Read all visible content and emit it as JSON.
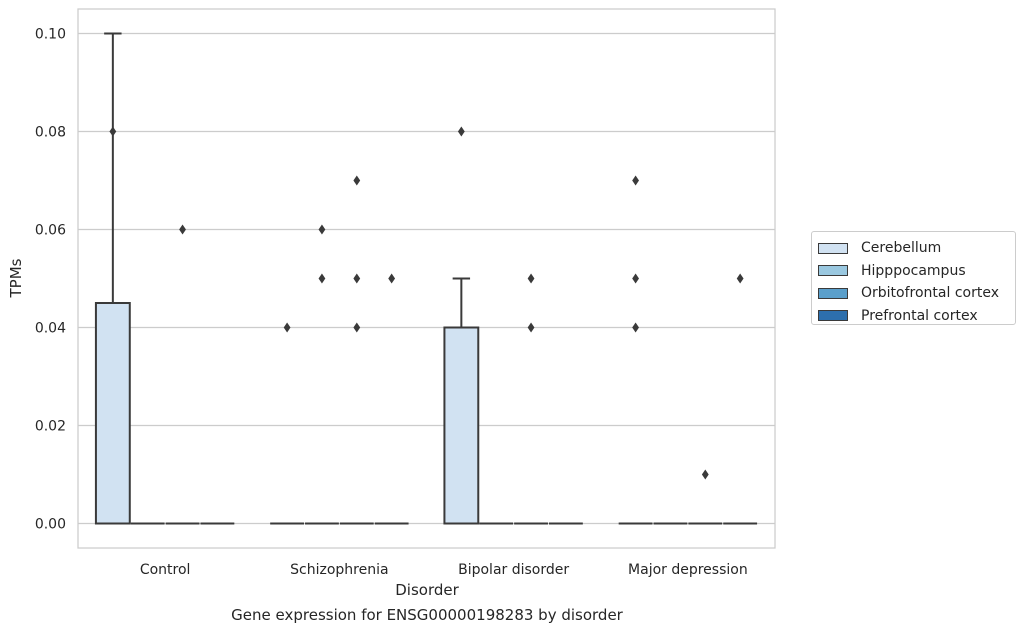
{
  "caption": "Gene expression for ENSG00000198283 by disorder",
  "colors": {
    "Cerebellum": "#d1e2f2",
    "Hipppocampus": "#9ac8e0",
    "Orbitofrontal cortex": "#5a9fcb",
    "Prefrontal cortex": "#2d6fad",
    "grid": "#cccccc",
    "box_edge": "#3a3a3a"
  },
  "chart_data": {
    "type": "box",
    "title": "",
    "xlabel": "Disorder",
    "ylabel": "TPMs",
    "ylim": [
      -0.005,
      0.105
    ],
    "yticks": [
      0.0,
      0.02,
      0.04,
      0.06,
      0.08,
      0.1
    ],
    "ytick_labels": [
      "0.00",
      "0.02",
      "0.04",
      "0.06",
      "0.08",
      "0.10"
    ],
    "grid": true,
    "legend_position": "right",
    "categories": [
      "Control",
      "Schizophrenia",
      "Bipolar disorder",
      "Major depression"
    ],
    "series": [
      {
        "name": "Cerebellum",
        "boxes": [
          {
            "q1": 0.0,
            "median": 0.0,
            "q3": 0.045,
            "whisker_low": 0.0,
            "whisker_high": 0.1,
            "outliers": [
              0.08
            ]
          },
          {
            "q1": 0.0,
            "median": 0.0,
            "q3": 0.0,
            "whisker_low": 0.0,
            "whisker_high": 0.0,
            "outliers": [
              0.04
            ]
          },
          {
            "q1": 0.0,
            "median": 0.0,
            "q3": 0.04,
            "whisker_low": 0.0,
            "whisker_high": 0.05,
            "outliers": [
              0.08
            ]
          },
          {
            "q1": 0.0,
            "median": 0.0,
            "q3": 0.0,
            "whisker_low": 0.0,
            "whisker_high": 0.0,
            "outliers": [
              0.07,
              0.05,
              0.04
            ]
          }
        ]
      },
      {
        "name": "Hipppocampus",
        "boxes": [
          {
            "q1": 0.0,
            "median": 0.0,
            "q3": 0.0,
            "whisker_low": 0.0,
            "whisker_high": 0.0,
            "outliers": []
          },
          {
            "q1": 0.0,
            "median": 0.0,
            "q3": 0.0,
            "whisker_low": 0.0,
            "whisker_high": 0.0,
            "outliers": [
              0.06,
              0.05
            ]
          },
          {
            "q1": 0.0,
            "median": 0.0,
            "q3": 0.0,
            "whisker_low": 0.0,
            "whisker_high": 0.0,
            "outliers": []
          },
          {
            "q1": 0.0,
            "median": 0.0,
            "q3": 0.0,
            "whisker_low": 0.0,
            "whisker_high": 0.0,
            "outliers": []
          }
        ]
      },
      {
        "name": "Orbitofrontal cortex",
        "boxes": [
          {
            "q1": 0.0,
            "median": 0.0,
            "q3": 0.0,
            "whisker_low": 0.0,
            "whisker_high": 0.0,
            "outliers": [
              0.06
            ]
          },
          {
            "q1": 0.0,
            "median": 0.0,
            "q3": 0.0,
            "whisker_low": 0.0,
            "whisker_high": 0.0,
            "outliers": [
              0.07,
              0.05,
              0.04
            ]
          },
          {
            "q1": 0.0,
            "median": 0.0,
            "q3": 0.0,
            "whisker_low": 0.0,
            "whisker_high": 0.0,
            "outliers": [
              0.05,
              0.04
            ]
          },
          {
            "q1": 0.0,
            "median": 0.0,
            "q3": 0.0,
            "whisker_low": 0.0,
            "whisker_high": 0.0,
            "outliers": [
              0.01
            ]
          }
        ]
      },
      {
        "name": "Prefrontal cortex",
        "boxes": [
          {
            "q1": 0.0,
            "median": 0.0,
            "q3": 0.0,
            "whisker_low": 0.0,
            "whisker_high": 0.0,
            "outliers": []
          },
          {
            "q1": 0.0,
            "median": 0.0,
            "q3": 0.0,
            "whisker_low": 0.0,
            "whisker_high": 0.0,
            "outliers": [
              0.05
            ]
          },
          {
            "q1": 0.0,
            "median": 0.0,
            "q3": 0.0,
            "whisker_low": 0.0,
            "whisker_high": 0.0,
            "outliers": []
          },
          {
            "q1": 0.0,
            "median": 0.0,
            "q3": 0.0,
            "whisker_low": 0.0,
            "whisker_high": 0.0,
            "outliers": [
              0.05
            ]
          }
        ]
      }
    ]
  }
}
